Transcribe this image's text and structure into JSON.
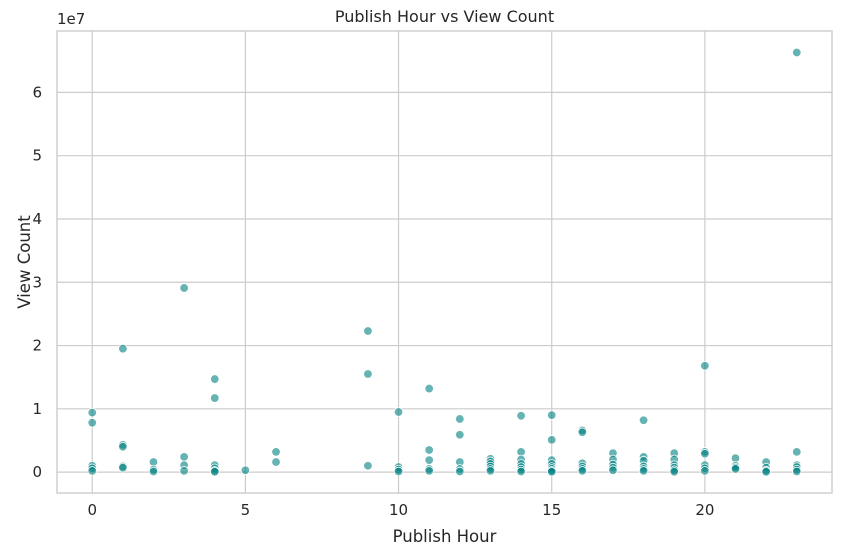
{
  "chart_data": {
    "type": "scatter",
    "title": "Publish Hour vs View Count",
    "xlabel": "Publish Hour",
    "ylabel": "View Count",
    "y_offset_label": "1e7",
    "xlim": [
      -1.15,
      24.15
    ],
    "ylim": [
      -3300000,
      69700000
    ],
    "x_ticks": [
      0,
      5,
      10,
      15,
      20
    ],
    "y_ticks": [
      0,
      10000000,
      20000000,
      30000000,
      40000000,
      50000000,
      60000000
    ],
    "y_tick_labels": [
      "0",
      "1",
      "2",
      "3",
      "4",
      "5",
      "6"
    ],
    "grid": true,
    "marker_color": "#008080",
    "points": [
      {
        "x": 0,
        "y": 9400000
      },
      {
        "x": 0,
        "y": 7800000
      },
      {
        "x": 0,
        "y": 1000000
      },
      {
        "x": 0,
        "y": 600000
      },
      {
        "x": 0,
        "y": 200000
      },
      {
        "x": 1,
        "y": 19500000
      },
      {
        "x": 1,
        "y": 4300000
      },
      {
        "x": 1,
        "y": 4000000
      },
      {
        "x": 1,
        "y": 900000
      },
      {
        "x": 1,
        "y": 700000
      },
      {
        "x": 2,
        "y": 1600000
      },
      {
        "x": 2,
        "y": 400000
      },
      {
        "x": 2,
        "y": 100000
      },
      {
        "x": 3,
        "y": 29100000
      },
      {
        "x": 3,
        "y": 2400000
      },
      {
        "x": 3,
        "y": 1100000
      },
      {
        "x": 3,
        "y": 200000
      },
      {
        "x": 4,
        "y": 14700000
      },
      {
        "x": 4,
        "y": 11700000
      },
      {
        "x": 4,
        "y": 1100000
      },
      {
        "x": 4,
        "y": 600000
      },
      {
        "x": 4,
        "y": 200000
      },
      {
        "x": 4,
        "y": 50000
      },
      {
        "x": 5,
        "y": 300000
      },
      {
        "x": 6,
        "y": 3200000
      },
      {
        "x": 6,
        "y": 1600000
      },
      {
        "x": 9,
        "y": 22300000
      },
      {
        "x": 9,
        "y": 15500000
      },
      {
        "x": 9,
        "y": 1000000
      },
      {
        "x": 10,
        "y": 9500000
      },
      {
        "x": 10,
        "y": 800000
      },
      {
        "x": 10,
        "y": 400000
      },
      {
        "x": 10,
        "y": 100000
      },
      {
        "x": 11,
        "y": 13200000
      },
      {
        "x": 11,
        "y": 3500000
      },
      {
        "x": 11,
        "y": 1900000
      },
      {
        "x": 11,
        "y": 500000
      },
      {
        "x": 11,
        "y": 200000
      },
      {
        "x": 12,
        "y": 8400000
      },
      {
        "x": 12,
        "y": 5900000
      },
      {
        "x": 12,
        "y": 1600000
      },
      {
        "x": 12,
        "y": 500000
      },
      {
        "x": 12,
        "y": 100000
      },
      {
        "x": 13,
        "y": 2100000
      },
      {
        "x": 13,
        "y": 1700000
      },
      {
        "x": 13,
        "y": 1300000
      },
      {
        "x": 13,
        "y": 900000
      },
      {
        "x": 13,
        "y": 500000
      },
      {
        "x": 13,
        "y": 200000
      },
      {
        "x": 14,
        "y": 8900000
      },
      {
        "x": 14,
        "y": 3200000
      },
      {
        "x": 14,
        "y": 2000000
      },
      {
        "x": 14,
        "y": 1300000
      },
      {
        "x": 14,
        "y": 800000
      },
      {
        "x": 14,
        "y": 400000
      },
      {
        "x": 14,
        "y": 100000
      },
      {
        "x": 15,
        "y": 9000000
      },
      {
        "x": 15,
        "y": 5100000
      },
      {
        "x": 15,
        "y": 1900000
      },
      {
        "x": 15,
        "y": 1300000
      },
      {
        "x": 15,
        "y": 800000
      },
      {
        "x": 15,
        "y": 500000
      },
      {
        "x": 15,
        "y": 200000
      },
      {
        "x": 15,
        "y": 50000
      },
      {
        "x": 16,
        "y": 6600000
      },
      {
        "x": 16,
        "y": 6300000
      },
      {
        "x": 16,
        "y": 1400000
      },
      {
        "x": 16,
        "y": 900000
      },
      {
        "x": 16,
        "y": 500000
      },
      {
        "x": 16,
        "y": 200000
      },
      {
        "x": 17,
        "y": 3000000
      },
      {
        "x": 17,
        "y": 2000000
      },
      {
        "x": 17,
        "y": 1200000
      },
      {
        "x": 17,
        "y": 700000
      },
      {
        "x": 17,
        "y": 300000
      },
      {
        "x": 18,
        "y": 8200000
      },
      {
        "x": 18,
        "y": 2400000
      },
      {
        "x": 18,
        "y": 1800000
      },
      {
        "x": 18,
        "y": 900000
      },
      {
        "x": 18,
        "y": 500000
      },
      {
        "x": 18,
        "y": 200000
      },
      {
        "x": 19,
        "y": 3000000
      },
      {
        "x": 19,
        "y": 2000000
      },
      {
        "x": 19,
        "y": 1100000
      },
      {
        "x": 19,
        "y": 700000
      },
      {
        "x": 19,
        "y": 300000
      },
      {
        "x": 19,
        "y": 50000
      },
      {
        "x": 20,
        "y": 16800000
      },
      {
        "x": 20,
        "y": 3200000
      },
      {
        "x": 20,
        "y": 2900000
      },
      {
        "x": 20,
        "y": 1100000
      },
      {
        "x": 20,
        "y": 600000
      },
      {
        "x": 20,
        "y": 200000
      },
      {
        "x": 21,
        "y": 2200000
      },
      {
        "x": 21,
        "y": 1000000
      },
      {
        "x": 21,
        "y": 700000
      },
      {
        "x": 21,
        "y": 500000
      },
      {
        "x": 22,
        "y": 1600000
      },
      {
        "x": 22,
        "y": 700000
      },
      {
        "x": 22,
        "y": 200000
      },
      {
        "x": 22,
        "y": 50000
      },
      {
        "x": 23,
        "y": 66300000
      },
      {
        "x": 23,
        "y": 3200000
      },
      {
        "x": 23,
        "y": 1100000
      },
      {
        "x": 23,
        "y": 800000
      },
      {
        "x": 23,
        "y": 400000
      },
      {
        "x": 23,
        "y": 100000
      }
    ]
  }
}
